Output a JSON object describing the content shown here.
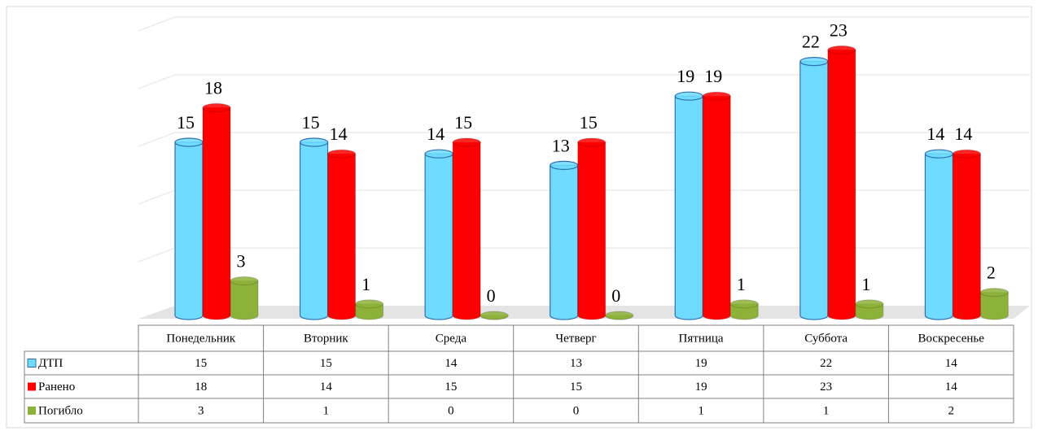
{
  "chart_data": {
    "type": "bar",
    "categories": [
      "Понедельник",
      "Вторник",
      "Среда",
      "Четверг",
      "Пятница",
      "Суббота",
      "Воскресенье"
    ],
    "series": [
      {
        "name": "ДТП",
        "color": "#6fdcff",
        "values": [
          15,
          15,
          14,
          13,
          19,
          22,
          14
        ]
      },
      {
        "name": "Ранено",
        "color": "#ff0000",
        "values": [
          18,
          14,
          15,
          15,
          19,
          23,
          14
        ]
      },
      {
        "name": "Погибло",
        "color": "#8db23a",
        "values": [
          3,
          1,
          0,
          0,
          1,
          1,
          2
        ]
      }
    ],
    "ylim": [
      0,
      25
    ],
    "yticks": [
      5,
      10,
      15,
      20,
      25
    ],
    "grid": true
  }
}
